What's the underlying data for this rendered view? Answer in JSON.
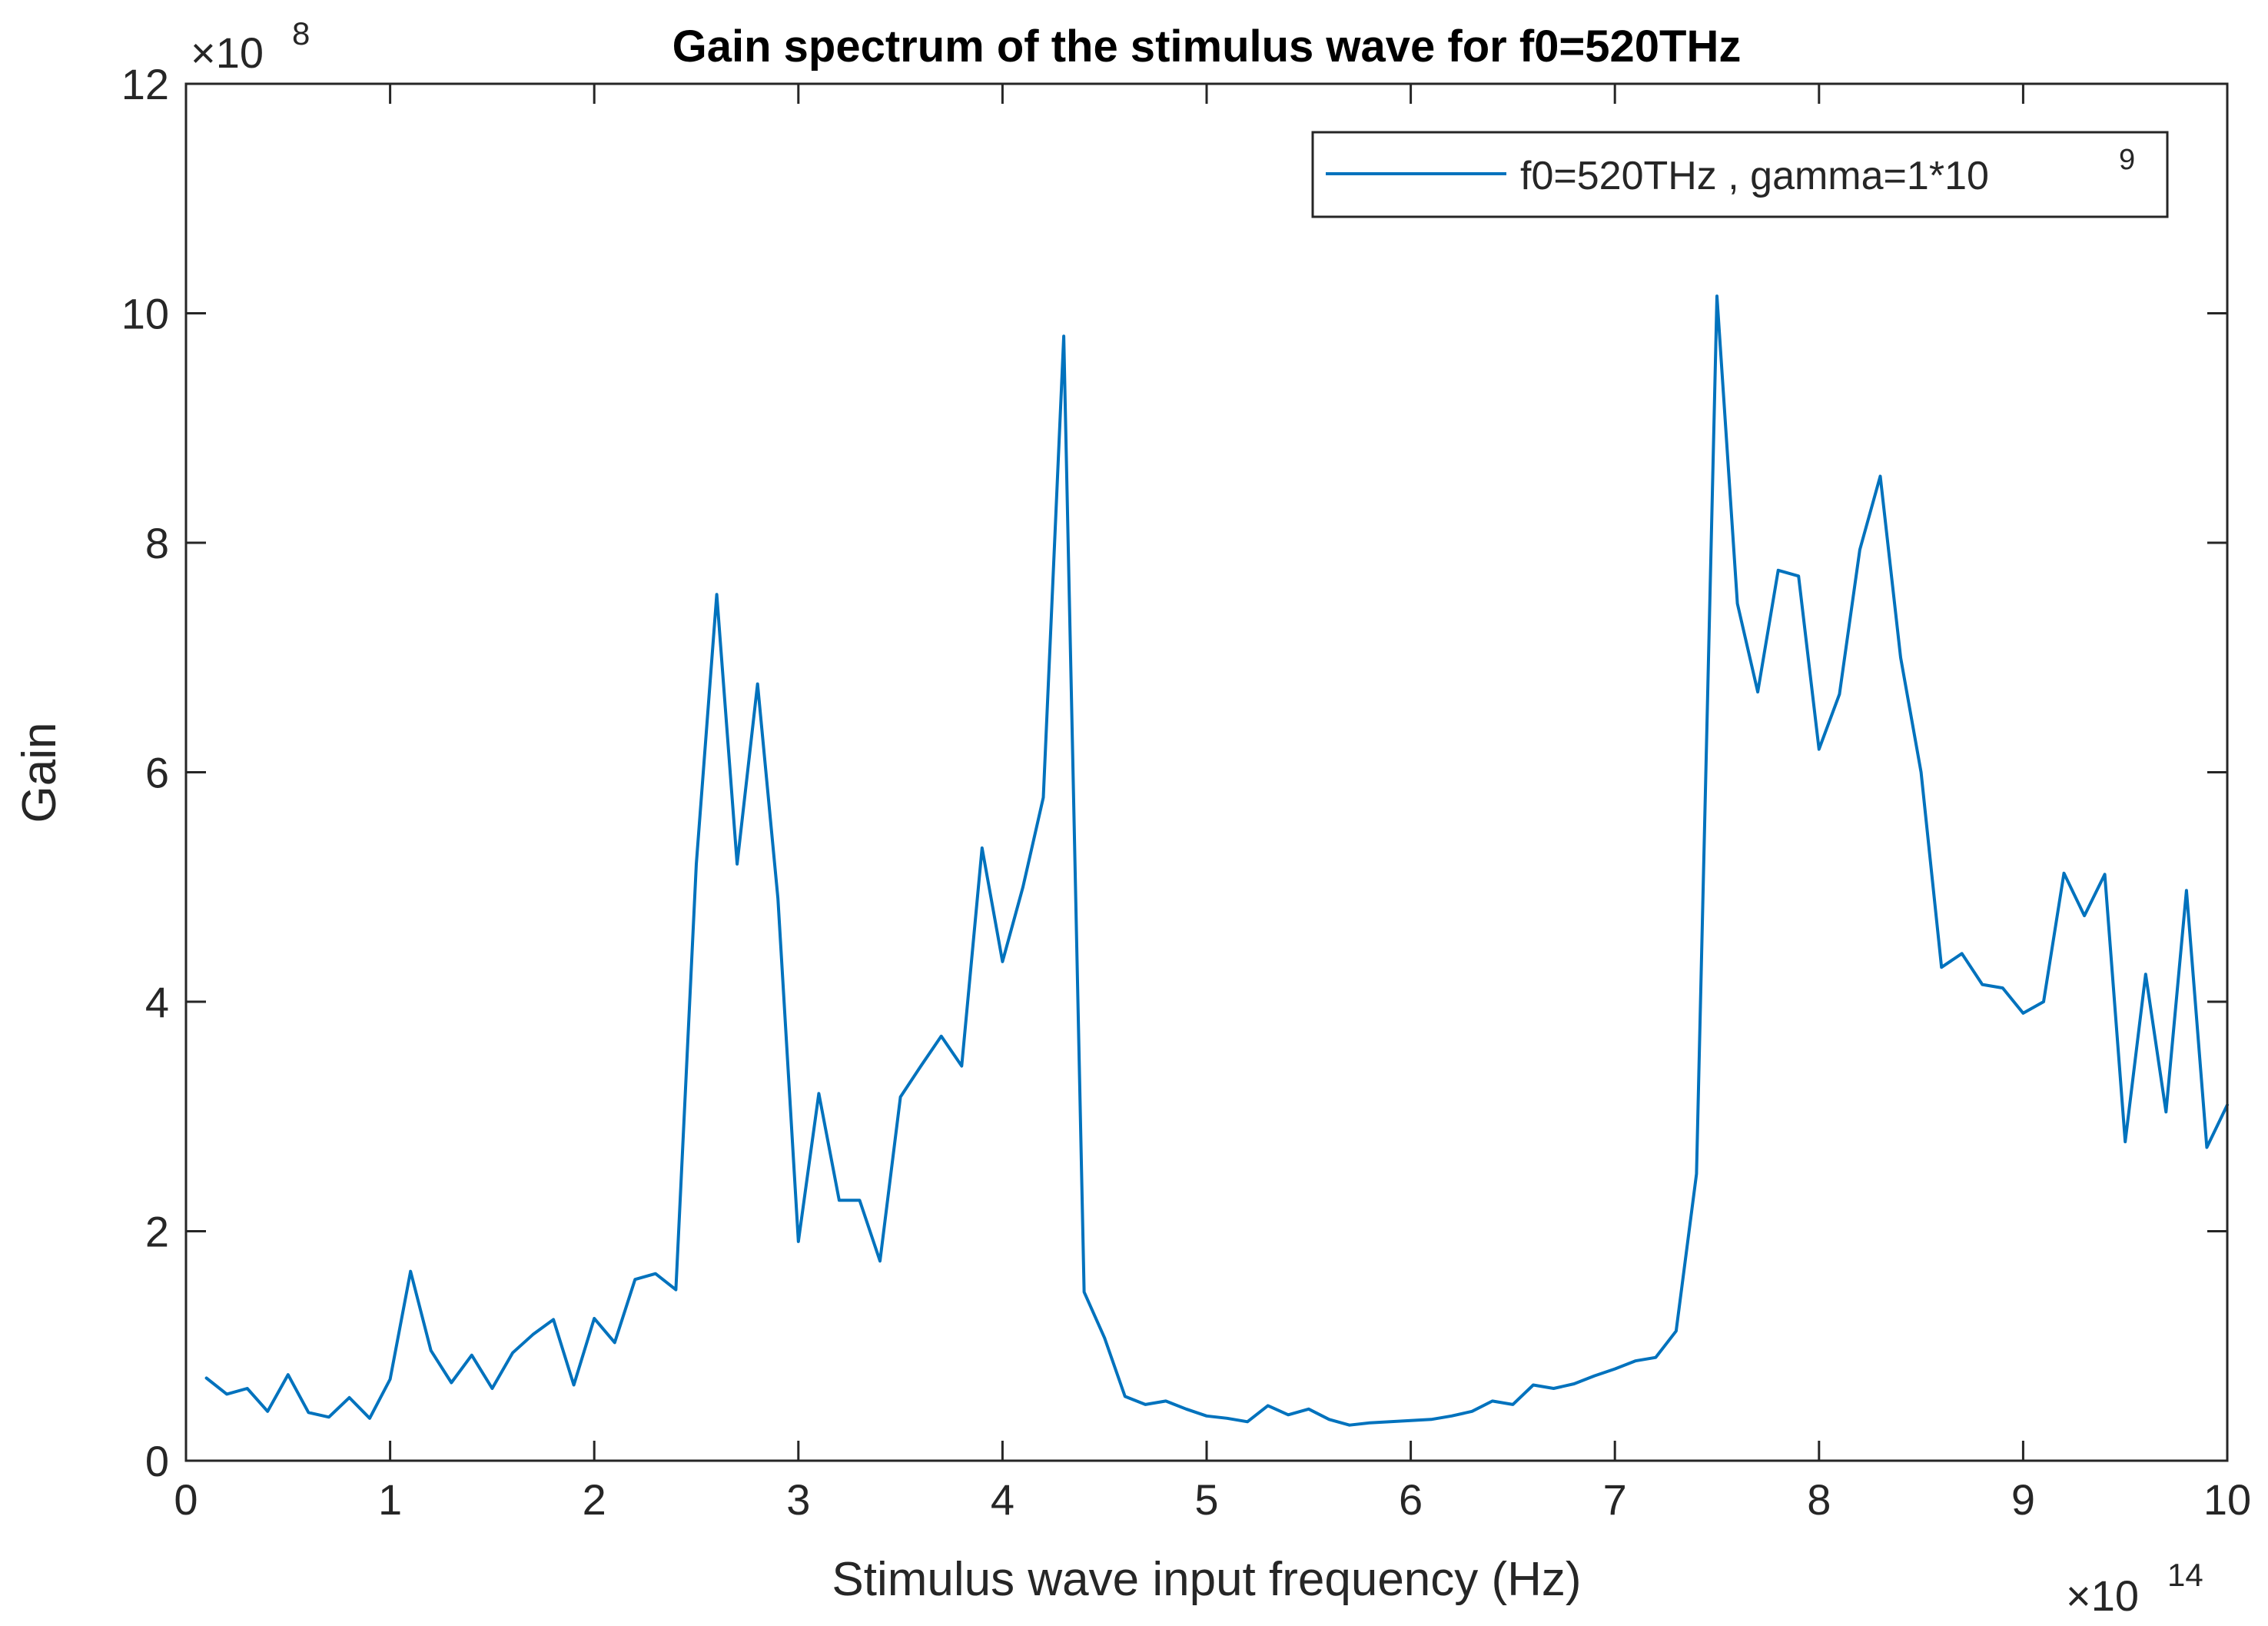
{
  "chart_data": {
    "type": "line",
    "title": "Gain spectrum of the stimulus wave for f0=520THz",
    "xlabel": "Stimulus wave input frequency (Hz)",
    "ylabel": "Gain",
    "x_multiplier": {
      "base": "×10",
      "exponent": "14"
    },
    "y_multiplier": {
      "base": "×10",
      "exponent": "8"
    },
    "xlim": [
      0,
      10
    ],
    "ylim": [
      0,
      12
    ],
    "xticks": [
      0,
      1,
      2,
      3,
      4,
      5,
      6,
      7,
      8,
      9,
      10
    ],
    "yticks": [
      0,
      2,
      4,
      6,
      8,
      10,
      12
    ],
    "xtick_labels": [
      "0",
      "1",
      "2",
      "3",
      "4",
      "5",
      "6",
      "7",
      "8",
      "9",
      "10"
    ],
    "ytick_labels": [
      "0",
      "2",
      "4",
      "6",
      "8",
      "10",
      "12"
    ],
    "grid": false,
    "legend_position": "top-right",
    "series": [
      {
        "name": "f0=520THz , gamma=1*10",
        "name_superscript": "9",
        "color": "#0072BD",
        "x": [
          0.1,
          0.2,
          0.3,
          0.4,
          0.5,
          0.6,
          0.7,
          0.8,
          0.9,
          1.0,
          1.1,
          1.2,
          1.3,
          1.4,
          1.5,
          1.6,
          1.7,
          1.8,
          1.9,
          2.0,
          2.1,
          2.2,
          2.3,
          2.4,
          2.5,
          2.6,
          2.7,
          2.8,
          2.9,
          3.0,
          3.1,
          3.2,
          3.3,
          3.4,
          3.5,
          3.6,
          3.7,
          3.8,
          3.9,
          4.0,
          4.1,
          4.2,
          4.3,
          4.4,
          4.5,
          4.6,
          4.7,
          4.8,
          4.9,
          5.0,
          5.1,
          5.2,
          5.3,
          5.4,
          5.5,
          5.6,
          5.7,
          5.8,
          5.9,
          6.0,
          6.1,
          6.2,
          6.3,
          6.4,
          6.5,
          6.6,
          6.7,
          6.8,
          6.9,
          7.0,
          7.1,
          7.2,
          7.3,
          7.4,
          7.5,
          7.6,
          7.7,
          7.8,
          7.9,
          8.0,
          8.1,
          8.2,
          8.3,
          8.4,
          8.5,
          8.6,
          8.7,
          8.8,
          8.9,
          9.0,
          9.1,
          9.2,
          9.3,
          9.4,
          9.5,
          9.6,
          9.7,
          9.8,
          9.9,
          10.0
        ],
        "y": [
          0.72,
          0.58,
          0.63,
          0.43,
          0.75,
          0.42,
          0.38,
          0.55,
          0.37,
          0.71,
          1.65,
          0.96,
          0.68,
          0.92,
          0.63,
          0.94,
          1.1,
          1.23,
          0.66,
          1.24,
          1.03,
          1.58,
          1.63,
          1.49,
          5.2,
          7.55,
          5.2,
          6.77,
          4.9,
          1.91,
          3.2,
          2.27,
          2.27,
          1.74,
          3.17,
          3.44,
          3.7,
          3.44,
          5.34,
          4.35,
          5.0,
          5.78,
          9.8,
          1.47,
          1.07,
          0.56,
          0.49,
          0.52,
          0.45,
          0.39,
          0.37,
          0.34,
          0.48,
          0.4,
          0.45,
          0.36,
          0.31,
          0.33,
          0.34,
          0.35,
          0.36,
          0.39,
          0.43,
          0.52,
          0.49,
          0.66,
          0.63,
          0.67,
          0.74,
          0.8,
          0.87,
          0.9,
          1.13,
          2.5,
          10.15,
          7.47,
          6.7,
          7.76,
          7.71,
          6.2,
          6.68,
          7.94,
          8.58,
          7.0,
          6.0,
          4.3,
          4.42,
          4.15,
          4.12,
          3.9,
          4.0,
          5.12,
          4.75,
          5.11,
          2.78,
          4.24,
          3.04,
          4.97,
          2.73,
          3.1
        ]
      }
    ]
  }
}
